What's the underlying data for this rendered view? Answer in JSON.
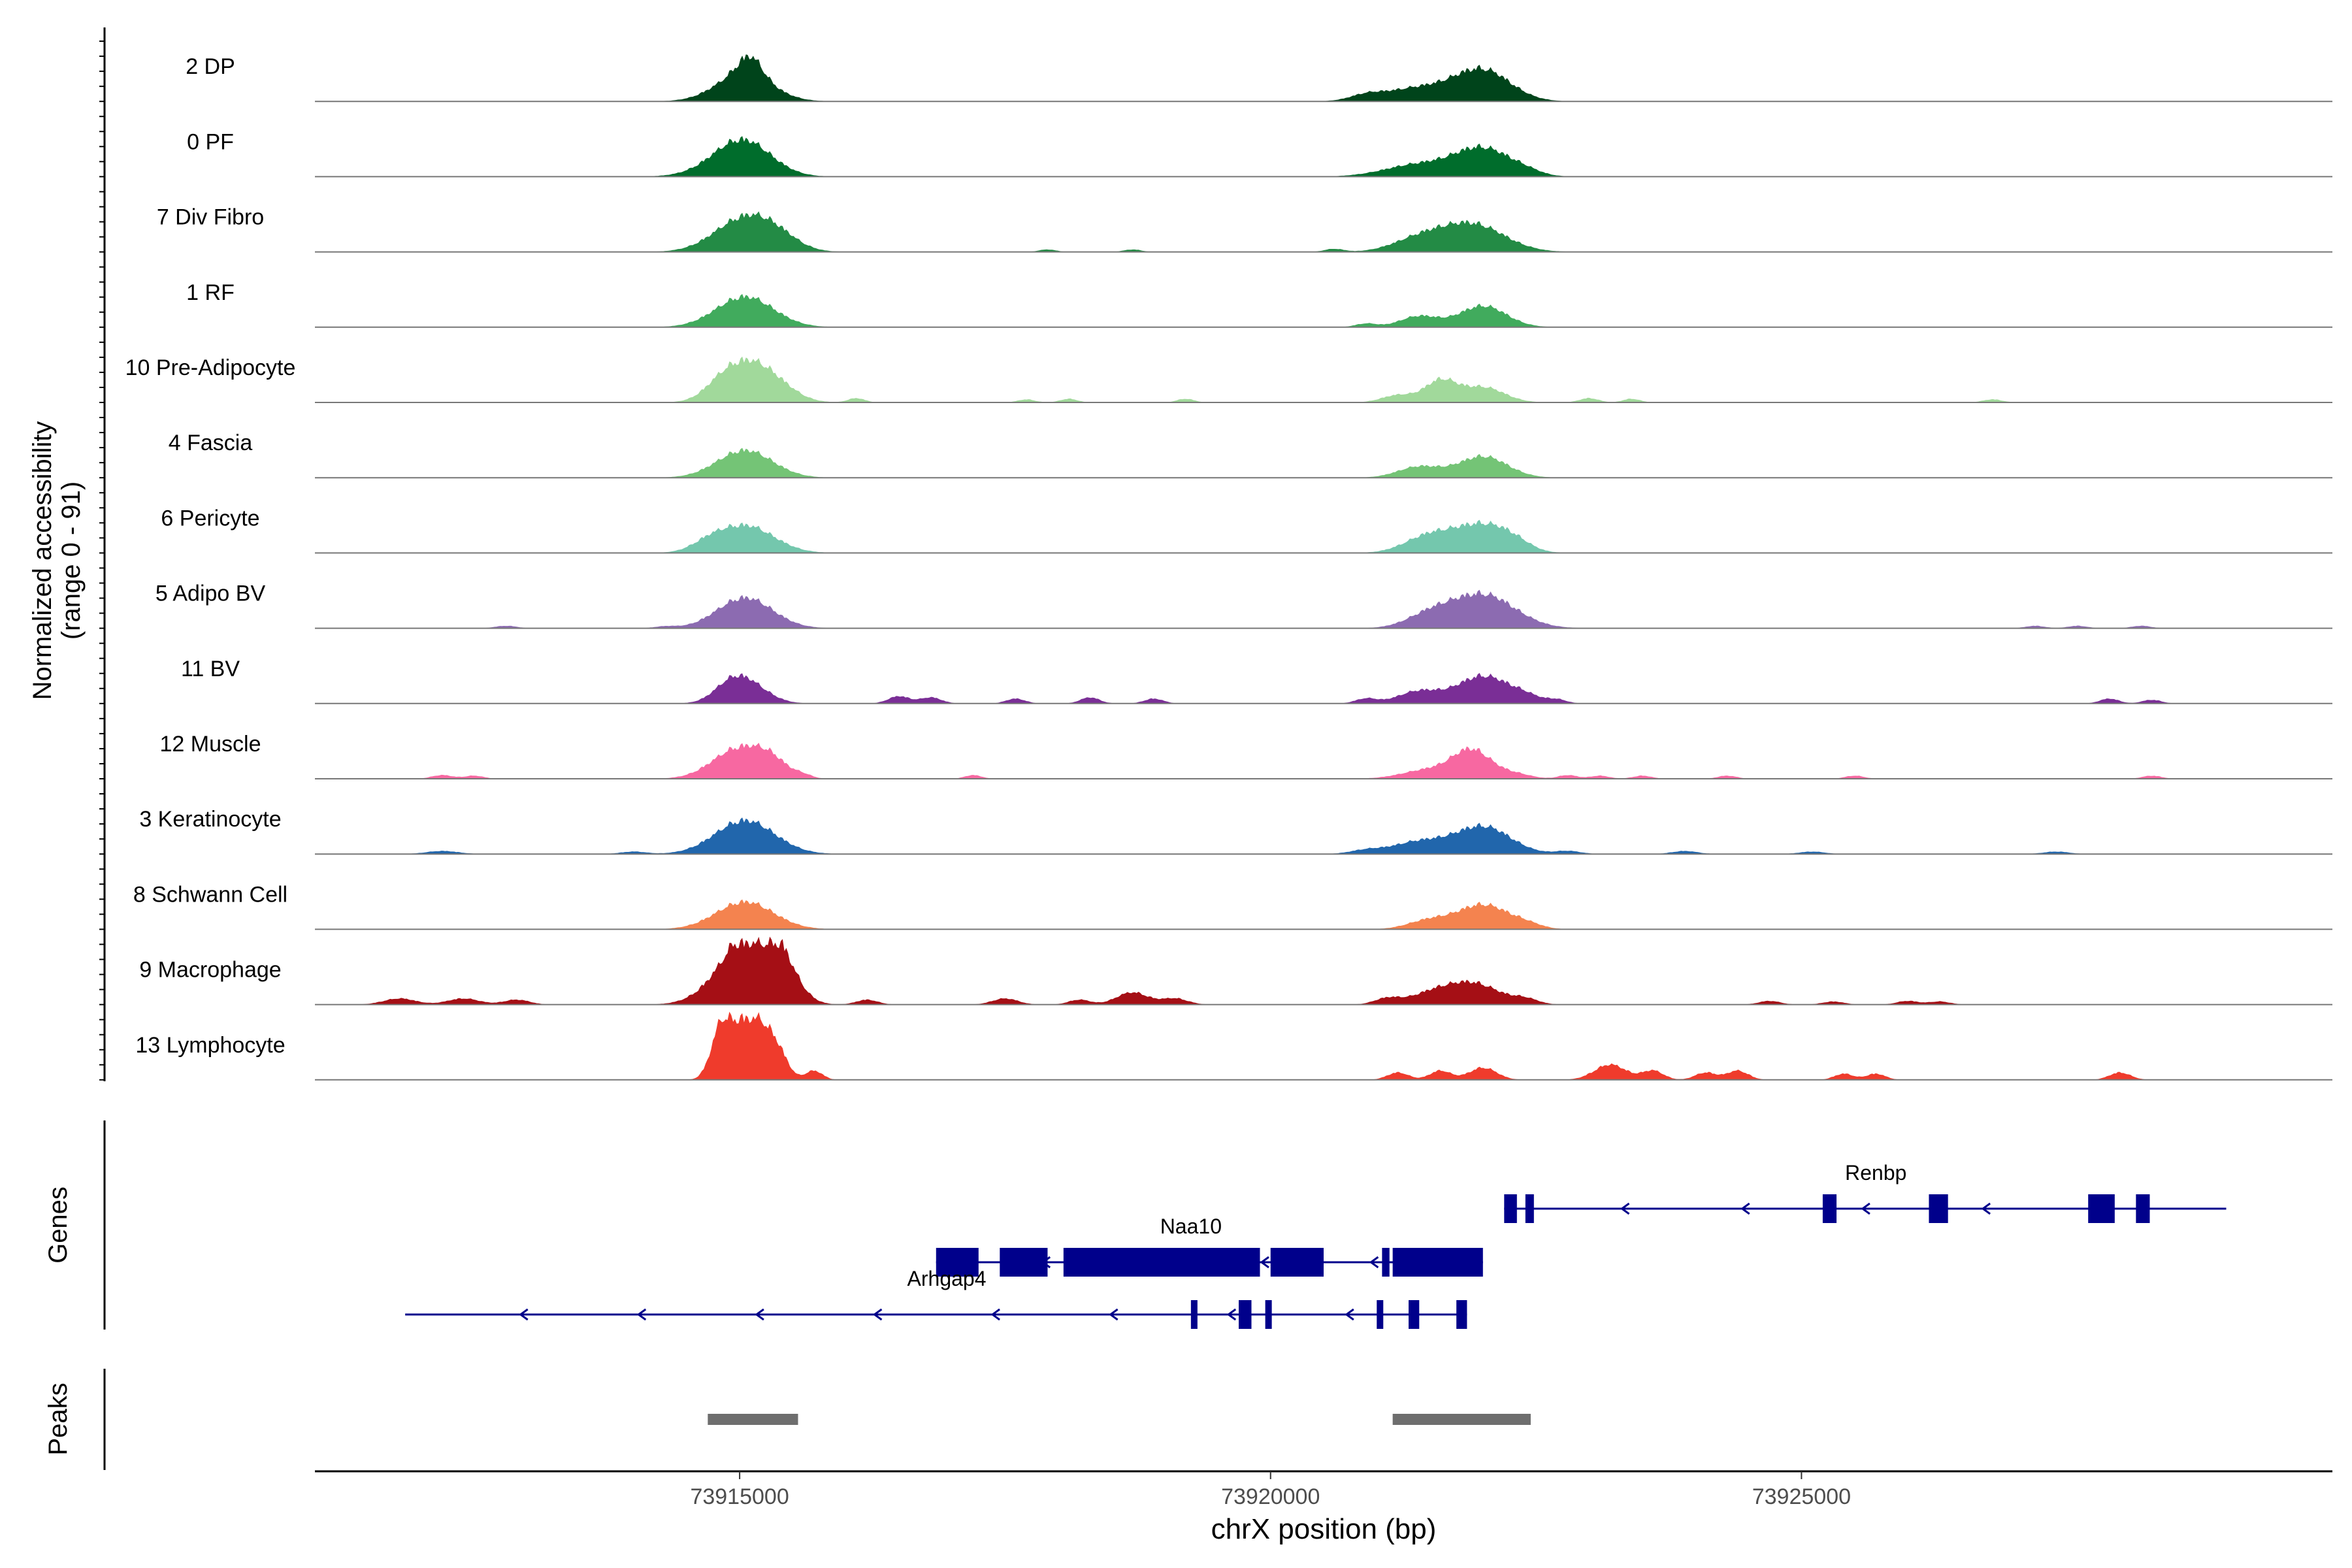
{
  "chart_data": {
    "type": "area",
    "chromosome": "chrX",
    "x_range": [
      73911000,
      73930000
    ],
    "xlabel": "chrX position (bp)",
    "x_ticks": [
      {
        "value": 73915000,
        "label": "73915000"
      },
      {
        "value": 73920000,
        "label": "73920000"
      },
      {
        "value": 73925000,
        "label": "73925000"
      }
    ],
    "ylabel_line1": "Normalized accessibility",
    "ylabel_line2": "(range 0 - 91)",
    "y_range": [
      0,
      91
    ],
    "genes_label": "Genes",
    "peaks_label": "Peaks",
    "tracks": [
      {
        "name": "2 DP",
        "color": "#00441b",
        "peaks": [
          [
            73915040,
            0.45,
            260
          ],
          [
            73915100,
            0.3,
            110
          ],
          [
            73922000,
            0.5,
            260
          ],
          [
            73921400,
            0.22,
            320
          ],
          [
            73920900,
            0.08,
            150
          ]
        ]
      },
      {
        "name": "0 PF",
        "color": "#006d2c",
        "peaks": [
          [
            73915040,
            0.5,
            260
          ],
          [
            73914900,
            0.12,
            300
          ],
          [
            73922000,
            0.45,
            260
          ],
          [
            73921400,
            0.2,
            320
          ],
          [
            73922400,
            0.06,
            150
          ]
        ]
      },
      {
        "name": "7 Div Fibro",
        "color": "#238b45",
        "peaks": [
          [
            73915050,
            0.55,
            280
          ],
          [
            73915350,
            0.15,
            200
          ],
          [
            73921900,
            0.45,
            300
          ],
          [
            73921400,
            0.2,
            250
          ],
          [
            73917900,
            0.04,
            80
          ],
          [
            73920600,
            0.05,
            90
          ],
          [
            73918700,
            0.04,
            80
          ]
        ]
      },
      {
        "name": "1 RF",
        "color": "#41ab5d",
        "peaks": [
          [
            73915050,
            0.5,
            270
          ],
          [
            73922000,
            0.35,
            220
          ],
          [
            73921400,
            0.18,
            180
          ],
          [
            73920900,
            0.06,
            100
          ]
        ]
      },
      {
        "name": "10 Pre-Adipocyte",
        "color": "#a1d99b",
        "peaks": [
          [
            73915050,
            0.6,
            230
          ],
          [
            73914800,
            0.12,
            150
          ],
          [
            73915350,
            0.2,
            200
          ],
          [
            73921600,
            0.35,
            150
          ],
          [
            73922000,
            0.25,
            200
          ],
          [
            73921200,
            0.12,
            150
          ],
          [
            73916100,
            0.07,
            80
          ],
          [
            73917700,
            0.05,
            80
          ],
          [
            73918100,
            0.06,
            80
          ],
          [
            73919200,
            0.06,
            80
          ],
          [
            73923000,
            0.07,
            90
          ],
          [
            73923400,
            0.06,
            80
          ],
          [
            73926800,
            0.05,
            90
          ]
        ]
      },
      {
        "name": "4 Fascia",
        "color": "#74c476",
        "peaks": [
          [
            73915050,
            0.45,
            260
          ],
          [
            73922000,
            0.35,
            230
          ],
          [
            73921400,
            0.18,
            200
          ]
        ]
      },
      {
        "name": "6 Pericyte",
        "color": "#74c7ad",
        "peaks": [
          [
            73915050,
            0.45,
            270
          ],
          [
            73922000,
            0.45,
            250
          ],
          [
            73921500,
            0.28,
            230
          ],
          [
            73914700,
            0.1,
            150
          ],
          [
            73922300,
            0.1,
            150
          ]
        ]
      },
      {
        "name": "5 Adipo BV",
        "color": "#8c6bb1",
        "peaks": [
          [
            73915050,
            0.5,
            260
          ],
          [
            73922000,
            0.55,
            300
          ],
          [
            73921500,
            0.2,
            220
          ],
          [
            73912800,
            0.04,
            100
          ],
          [
            73914300,
            0.03,
            100
          ],
          [
            73927200,
            0.04,
            90
          ],
          [
            73927600,
            0.04,
            90
          ],
          [
            73928200,
            0.04,
            90
          ]
        ]
      },
      {
        "name": "11 BV",
        "color": "#7a2e96",
        "peaks": [
          [
            73915050,
            0.35,
            200
          ],
          [
            73914900,
            0.15,
            150
          ],
          [
            73922000,
            0.45,
            240
          ],
          [
            73921400,
            0.2,
            200
          ],
          [
            73922400,
            0.1,
            150
          ],
          [
            73916500,
            0.12,
            100
          ],
          [
            73916800,
            0.1,
            100
          ],
          [
            73917600,
            0.08,
            90
          ],
          [
            73918300,
            0.1,
            90
          ],
          [
            73918900,
            0.08,
            90
          ],
          [
            73920900,
            0.08,
            100
          ],
          [
            73922700,
            0.06,
            90
          ],
          [
            73927900,
            0.08,
            90
          ],
          [
            73928300,
            0.06,
            90
          ]
        ]
      },
      {
        "name": "12 Muscle",
        "color": "#f768a1",
        "peaks": [
          [
            73915000,
            0.5,
            250
          ],
          [
            73915300,
            0.2,
            150
          ],
          [
            73921900,
            0.45,
            180
          ],
          [
            73921500,
            0.15,
            250
          ],
          [
            73922300,
            0.08,
            150
          ],
          [
            73912200,
            0.06,
            100
          ],
          [
            73912500,
            0.05,
            90
          ],
          [
            73915600,
            0.05,
            80
          ],
          [
            73917200,
            0.06,
            80
          ],
          [
            73922800,
            0.06,
            90
          ],
          [
            73923100,
            0.05,
            90
          ],
          [
            73923500,
            0.05,
            90
          ],
          [
            73924300,
            0.05,
            90
          ],
          [
            73925500,
            0.05,
            90
          ],
          [
            73928300,
            0.05,
            90
          ]
        ]
      },
      {
        "name": "3 Keratinocyte",
        "color": "#2166ac",
        "peaks": [
          [
            73915050,
            0.55,
            280
          ],
          [
            73922000,
            0.45,
            260
          ],
          [
            73921400,
            0.2,
            250
          ],
          [
            73912200,
            0.05,
            150
          ],
          [
            73914000,
            0.04,
            120
          ],
          [
            73920900,
            0.06,
            150
          ],
          [
            73922800,
            0.05,
            120
          ],
          [
            73923900,
            0.05,
            120
          ],
          [
            73925100,
            0.04,
            120
          ],
          [
            73927400,
            0.04,
            120
          ]
        ]
      },
      {
        "name": "8 Schwann Cell",
        "color": "#f4834f",
        "peaks": [
          [
            73915050,
            0.45,
            270
          ],
          [
            73922000,
            0.4,
            230
          ],
          [
            73921500,
            0.15,
            200
          ],
          [
            73922400,
            0.08,
            150
          ]
        ]
      },
      {
        "name": "9 Macrophage",
        "color": "#a50f15",
        "peaks": [
          [
            73915200,
            0.9,
            220
          ],
          [
            73914950,
            0.55,
            250
          ],
          [
            73915400,
            0.3,
            150
          ],
          [
            73921900,
            0.35,
            250
          ],
          [
            73921500,
            0.15,
            200
          ],
          [
            73911800,
            0.1,
            150
          ],
          [
            73912400,
            0.1,
            150
          ],
          [
            73912900,
            0.08,
            120
          ],
          [
            73916200,
            0.08,
            100
          ],
          [
            73917500,
            0.1,
            120
          ],
          [
            73918200,
            0.08,
            100
          ],
          [
            73918700,
            0.2,
            150
          ],
          [
            73919100,
            0.1,
            120
          ],
          [
            73921100,
            0.1,
            120
          ],
          [
            73922400,
            0.08,
            120
          ],
          [
            73924700,
            0.06,
            100
          ],
          [
            73925300,
            0.05,
            100
          ],
          [
            73926000,
            0.06,
            100
          ],
          [
            73926300,
            0.05,
            100
          ]
        ]
      },
      {
        "name": "13 Lymphocyte",
        "color": "#ef3b2c",
        "peaks": [
          [
            73914950,
            1.0,
            110
          ],
          [
            73915150,
            0.85,
            120
          ],
          [
            73915350,
            0.45,
            100
          ],
          [
            73914800,
            0.5,
            90
          ],
          [
            73915700,
            0.15,
            80
          ],
          [
            73921200,
            0.12,
            100
          ],
          [
            73921600,
            0.15,
            100
          ],
          [
            73922000,
            0.2,
            130
          ],
          [
            73923200,
            0.25,
            150
          ],
          [
            73923600,
            0.15,
            100
          ],
          [
            73924100,
            0.12,
            100
          ],
          [
            73924400,
            0.15,
            100
          ],
          [
            73925400,
            0.1,
            90
          ],
          [
            73925700,
            0.1,
            90
          ],
          [
            73928000,
            0.12,
            100
          ]
        ]
      }
    ],
    "genes": [
      {
        "name": "Renbp",
        "strand": "-",
        "start": 73922200,
        "end": 73929000,
        "label_pos": 73925700,
        "exons": [
          [
            73922200,
            73922320
          ],
          [
            73922400,
            73922480
          ],
          [
            73925200,
            73925330
          ],
          [
            73926200,
            73926380
          ],
          [
            73927700,
            73927950
          ],
          [
            73928150,
            73928280
          ]
        ]
      },
      {
        "name": "Naa10",
        "strand": "-",
        "start": 73916850,
        "end": 73922000,
        "label_pos": 73919250,
        "exons": [
          [
            73916850,
            73917250
          ],
          [
            73917450,
            73917900
          ],
          [
            73918050,
            73919900
          ],
          [
            73920000,
            73920500
          ],
          [
            73921050,
            73921120
          ],
          [
            73921150,
            73922000
          ]
        ]
      },
      {
        "name": "Arhgap4",
        "strand": "-",
        "start": 73911850,
        "end": 73921850,
        "label_pos": 73916950,
        "exons": [
          [
            73919250,
            73919290
          ],
          [
            73919700,
            73919820
          ],
          [
            73919950,
            73920000
          ],
          [
            73921000,
            73921050
          ],
          [
            73921300,
            73921400
          ],
          [
            73921750,
            73921850
          ]
        ]
      }
    ],
    "peak_regions": [
      [
        73914700,
        73915550
      ],
      [
        73921150,
        73922450
      ]
    ]
  }
}
